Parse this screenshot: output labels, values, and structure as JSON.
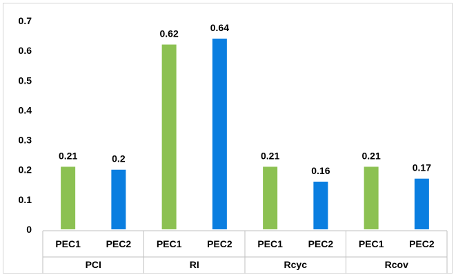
{
  "chart_data": {
    "type": "bar",
    "groups": [
      {
        "label": "PCI",
        "categories": [
          "PEC1",
          "PEC2"
        ],
        "values": [
          0.21,
          0.2
        ],
        "value_labels": [
          "0.21",
          "0.2"
        ]
      },
      {
        "label": "RI",
        "categories": [
          "PEC1",
          "PEC2"
        ],
        "values": [
          0.62,
          0.64
        ],
        "value_labels": [
          "0.62",
          "0.64"
        ]
      },
      {
        "label": "Rcyc",
        "categories": [
          "PEC1",
          "PEC2"
        ],
        "values": [
          0.21,
          0.16
        ],
        "value_labels": [
          "0.21",
          "0.16"
        ]
      },
      {
        "label": "Rcov",
        "categories": [
          "PEC1",
          "PEC2"
        ],
        "values": [
          0.21,
          0.17
        ],
        "value_labels": [
          "0.21",
          "0.17"
        ]
      }
    ],
    "ylim": [
      0,
      0.7
    ],
    "yticks": [
      "0",
      "0.1",
      "0.2",
      "0.3",
      "0.4",
      "0.5",
      "0.6",
      "0.7"
    ],
    "grid": false,
    "legend": "none",
    "colors": {
      "PEC1": "#8cc152",
      "PEC2": "#0a7ee0"
    }
  }
}
